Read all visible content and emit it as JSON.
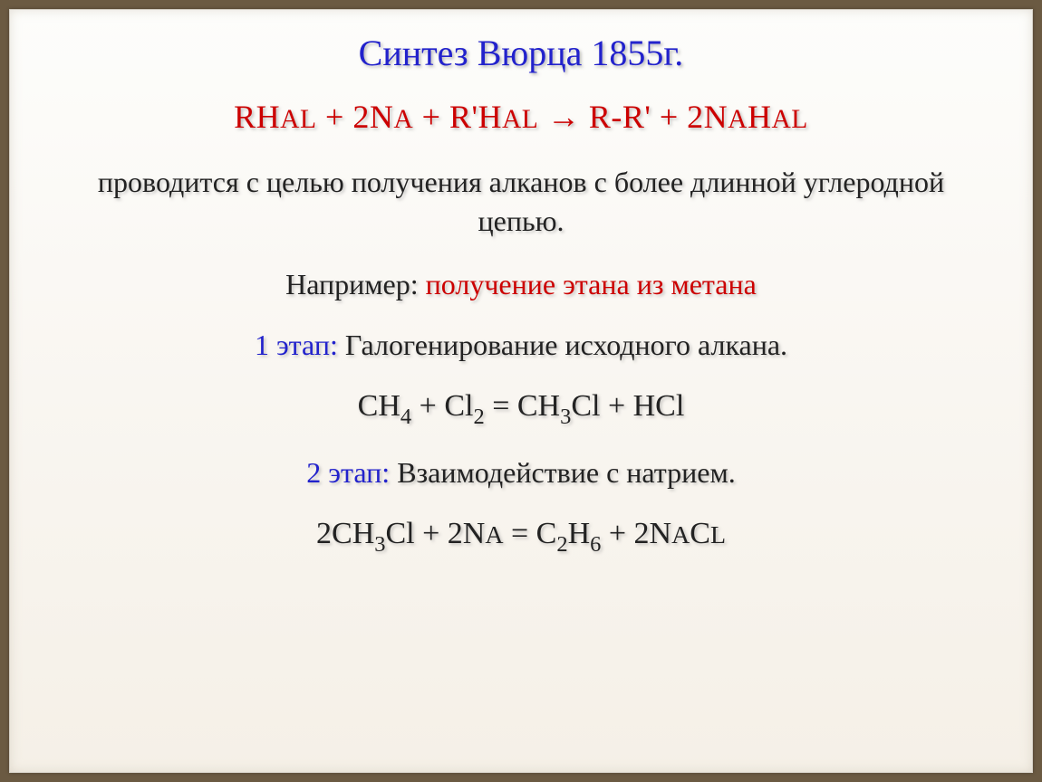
{
  "colors": {
    "page_bg": "#6b5a42",
    "slide_bg_top": "#fdfdfb",
    "slide_bg_bottom": "#f5f0e7",
    "title_color": "#2222cc",
    "red_color": "#cc0000",
    "body_color": "#222222",
    "shadow_color": "rgba(120,120,120,0.45)"
  },
  "typography": {
    "title_fontsize": 40,
    "equation_fontsize": 36,
    "body_fontsize": 32,
    "font_family": "Georgia, Times New Roman, serif"
  },
  "title": "Синтез Вюрца 1855г.",
  "main_equation": {
    "text": "RHal + 2Na + R'Hal → R-R' + 2NaHal",
    "parts": [
      {
        "t": "RH",
        "sub": null
      },
      {
        "t": "AL",
        "sub": null
      },
      {
        "t": " + 2N",
        "sub": null
      },
      {
        "t": "A",
        "sub": null
      },
      {
        "t": " + R'H",
        "sub": null
      },
      {
        "t": "AL",
        "sub": null
      },
      {
        "t": " → R-R' + 2N",
        "sub": null
      },
      {
        "t": "A",
        "sub": null
      },
      {
        "t": "H",
        "sub": null
      },
      {
        "t": "AL",
        "sub": null
      }
    ]
  },
  "description": "проводится с целью получения алканов с более длинной углеродной цепью.",
  "example": {
    "prefix": "Например: ",
    "main": "получение этана из метана"
  },
  "stage1": {
    "label": "1 этап: ",
    "text": "Галогенирование исходного алкана."
  },
  "equation1": {
    "display": "CH₄ + Cl₂ = CH₃Cl + HCl",
    "parts": [
      {
        "t": "CH",
        "sub": "4"
      },
      {
        "t": " + Cl",
        "sub": "2"
      },
      {
        "t": " = CH",
        "sub": "3"
      },
      {
        "t": "Cl + HCl",
        "sub": null
      }
    ]
  },
  "stage2": {
    "label": "2 этап: ",
    "text": "Взаимодействие с натрием."
  },
  "equation2": {
    "display": "2CH₃Cl + 2Na = C₂H₆ + 2NaCl",
    "parts": [
      {
        "t": "2CH",
        "sub": "3"
      },
      {
        "t": "Cl + 2N",
        "sub": null
      },
      {
        "t": "A",
        "sub": null
      },
      {
        "t": " = C",
        "sub": "2"
      },
      {
        "t": "H",
        "sub": "6"
      },
      {
        "t": " + 2N",
        "sub": null
      },
      {
        "t": "A",
        "sub": null
      },
      {
        "t": "C",
        "sub": null
      },
      {
        "t": "L",
        "sub": null
      }
    ]
  }
}
